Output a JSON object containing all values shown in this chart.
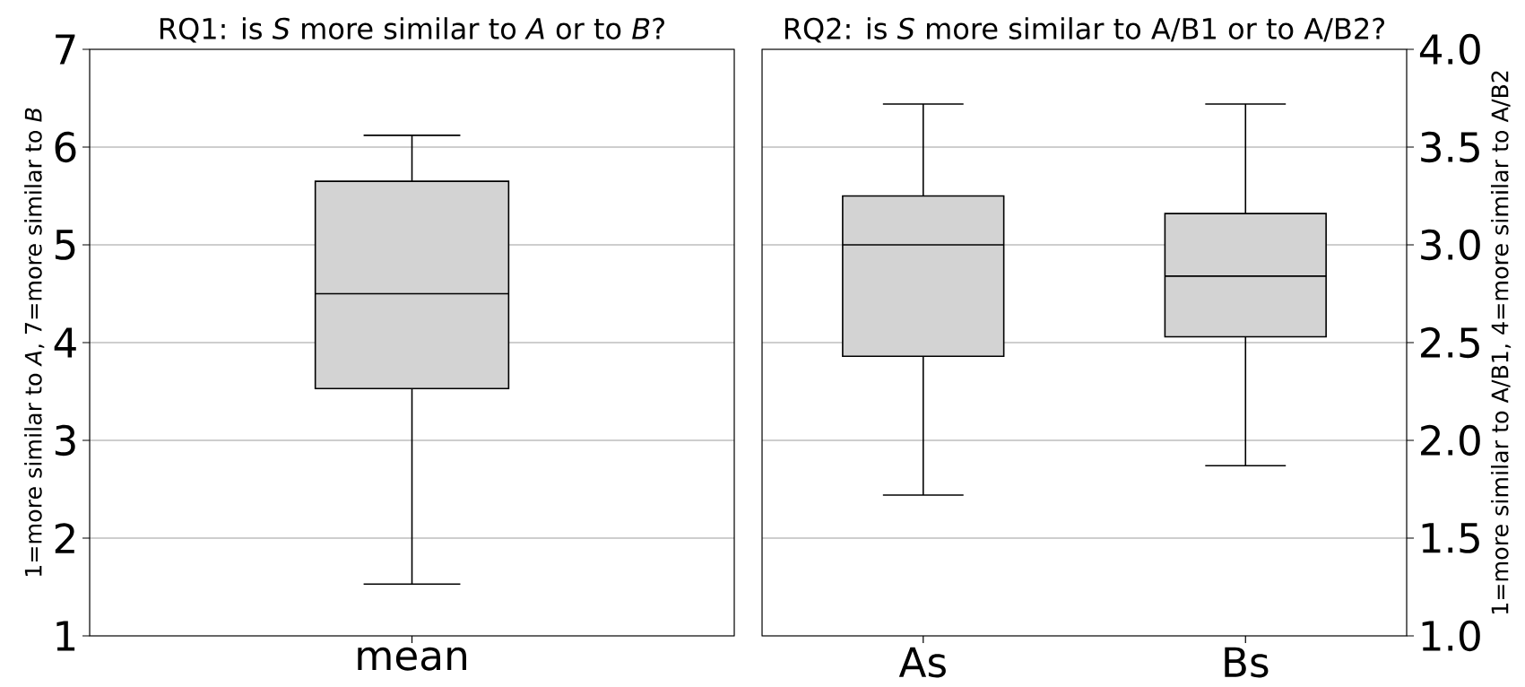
{
  "chart_data": [
    {
      "type": "box",
      "title": "RQ1: is *S* more similar to *A* or to *B*?",
      "ylabel": "1=more similar to *A*, 7=more similar to *B*",
      "categories": [
        "mean"
      ],
      "ylim": [
        1,
        7
      ],
      "yticks": [
        1,
        2,
        3,
        4,
        5,
        6,
        7
      ],
      "grid": "y",
      "series": [
        {
          "color": "#d3d3d3",
          "boxes": [
            {
              "low": 1.53,
              "q1": 3.53,
              "median": 4.5,
              "q3": 5.65,
              "high": 6.12
            }
          ]
        }
      ]
    },
    {
      "type": "box",
      "title": "RQ2: is *S* more similar to A/B1 or to A/B2?",
      "y2label": "1=more similar to A/B1, 4=more similar to A/B2",
      "categories": [
        "As",
        "Bs"
      ],
      "y2lim": [
        1,
        4
      ],
      "y2ticks": [
        {
          "value": 1,
          "label": "1.0"
        },
        {
          "value": 1.5,
          "label": "1.5"
        },
        {
          "value": 2,
          "label": "2.0"
        },
        {
          "value": 2.5,
          "label": "2.5"
        },
        {
          "value": 3,
          "label": "3.0"
        },
        {
          "value": 3.5,
          "label": "3.5"
        },
        {
          "value": 4,
          "label": "4.0"
        }
      ],
      "grid": "y",
      "series": [
        {
          "color": "#d3d3d3",
          "axis": "y2",
          "boxes": [
            {
              "low": 1.72,
              "q1": 2.43,
              "median": 3.0,
              "q3": 3.25,
              "high": 3.72
            },
            {
              "low": 1.87,
              "q1": 2.53,
              "median": 2.84,
              "q3": 3.16,
              "high": 3.72
            }
          ]
        }
      ]
    }
  ]
}
